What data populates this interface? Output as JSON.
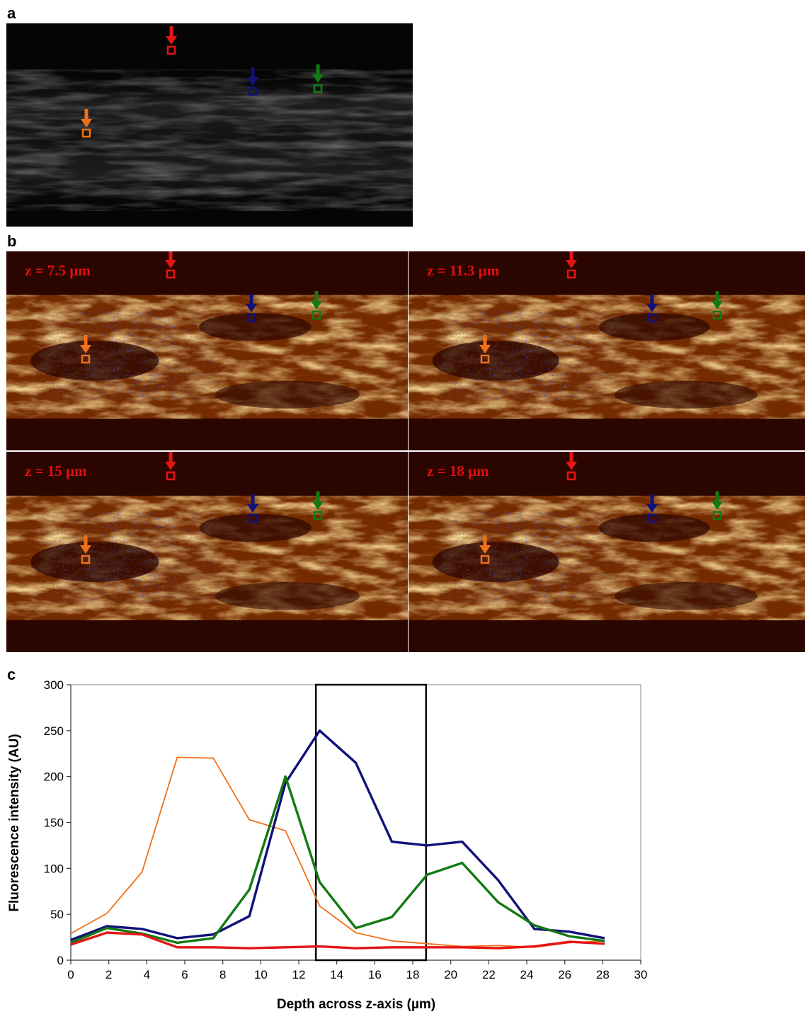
{
  "panels": {
    "a": "a",
    "b": "b",
    "c": "c"
  },
  "microscopy": {
    "z_labels": [
      "z = 7.5 µm",
      "z = 11.3 µm",
      "z = 15 µm",
      "z = 18 µm"
    ],
    "marker_colors": {
      "red": "#e51515",
      "blue": "#11117a",
      "green": "#127a12",
      "orange": "#f07018"
    },
    "thermal_palette": {
      "dark": "#2b0500",
      "mid": "#b04a00",
      "bright": "#ffd27a",
      "saturated": "#0a1ad8"
    }
  },
  "chart_data": {
    "type": "line",
    "xlabel": "Depth across z-axis (µm)",
    "ylabel": "Fluorescence intensity (AU)",
    "xlim": [
      0,
      30
    ],
    "ylim": [
      0,
      300
    ],
    "x_ticks": [
      0,
      2,
      4,
      6,
      8,
      10,
      12,
      14,
      16,
      18,
      20,
      22,
      24,
      26,
      28,
      30
    ],
    "y_ticks": [
      0,
      50,
      100,
      150,
      200,
      250,
      300
    ],
    "grid": false,
    "highlight_box": [
      12.9,
      18.7
    ],
    "series": [
      {
        "color": "#f07018",
        "width": "thin",
        "x": [
          0,
          1.9,
          3.75,
          5.6,
          7.5,
          9.4,
          11.3,
          13.1,
          15,
          16.9,
          18.75,
          20.6,
          22.5,
          24.4,
          26.25,
          28.1
        ],
        "values": [
          29,
          51,
          96,
          221,
          220,
          153,
          141,
          59,
          30,
          21,
          18,
          15,
          16,
          14,
          19,
          21
        ]
      },
      {
        "color": "#11117a",
        "width": "thick",
        "x": [
          0,
          1.9,
          3.75,
          5.6,
          7.5,
          9.4,
          11.3,
          13.1,
          15,
          16.9,
          18.75,
          20.6,
          22.5,
          24.4,
          26.25,
          28.1
        ],
        "values": [
          22,
          37,
          34,
          24,
          28,
          48,
          193,
          250,
          215,
          129,
          125,
          129,
          87,
          34,
          31,
          24
        ]
      },
      {
        "color": "#127a12",
        "width": "thick",
        "x": [
          0,
          1.9,
          3.75,
          5.6,
          7.5,
          9.4,
          11.3,
          13.1,
          15,
          16.9,
          18.75,
          20.6,
          22.5,
          24.4,
          26.25,
          28.1
        ],
        "values": [
          19,
          35,
          29,
          19,
          24,
          77,
          200,
          85,
          35,
          47,
          93,
          106,
          63,
          38,
          26,
          21
        ]
      },
      {
        "color": "#e51515",
        "width": "thick",
        "x": [
          0,
          1.9,
          3.75,
          5.6,
          7.5,
          9.4,
          11.3,
          13.1,
          15,
          16.9,
          18.75,
          20.6,
          22.5,
          24.4,
          26.25,
          28.1
        ],
        "values": [
          17,
          30,
          28,
          14,
          14,
          13,
          14,
          15,
          13,
          14,
          14,
          14,
          13,
          15,
          20,
          18
        ]
      }
    ]
  }
}
